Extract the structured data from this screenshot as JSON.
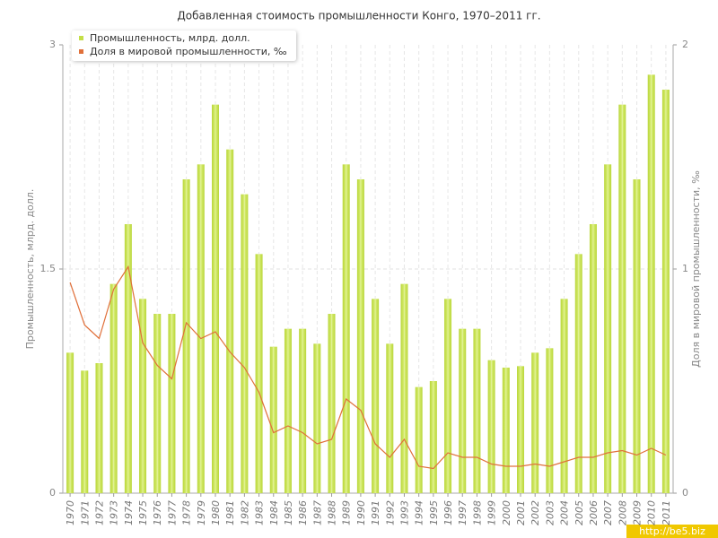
{
  "chart_data": {
    "type": "bar",
    "title": "Добавленная стоимость промышленности Конго, 1970–2011 гг.",
    "y_label": "Промышленность, млрд. долл.",
    "y2_label": "Доля в мировой промышленности, ‰",
    "watermark": "http://be5.biz",
    "categories": [
      "1970",
      "1971",
      "1972",
      "1973",
      "1974",
      "1975",
      "1976",
      "1977",
      "1978",
      "1979",
      "1980",
      "1981",
      "1982",
      "1983",
      "1984",
      "1985",
      "1986",
      "1987",
      "1988",
      "1989",
      "1990",
      "1991",
      "1992",
      "1993",
      "1994",
      "1995",
      "1996",
      "1997",
      "1998",
      "1999",
      "2000",
      "2001",
      "2002",
      "2003",
      "2004",
      "2005",
      "2006",
      "2007",
      "2008",
      "2009",
      "2010",
      "2011"
    ],
    "series": [
      {
        "name": "Промышленность, млрд. долл.",
        "type": "bar",
        "color": "#c4df48",
        "values": [
          0.94,
          0.82,
          0.87,
          1.4,
          1.8,
          1.3,
          1.2,
          1.2,
          2.1,
          2.2,
          2.6,
          2.3,
          2.0,
          1.6,
          0.98,
          1.1,
          1.1,
          1.0,
          1.2,
          2.2,
          2.1,
          1.3,
          1.0,
          1.4,
          0.71,
          0.75,
          1.3,
          1.1,
          1.1,
          0.89,
          0.84,
          0.85,
          0.94,
          0.97,
          1.3,
          1.6,
          1.8,
          2.2,
          2.6,
          2.1,
          2.8,
          2.7
        ]
      },
      {
        "name": "Доля в мировой промышленности, ‰",
        "type": "line",
        "axis": "y2",
        "color": "#e0703a",
        "values": [
          0.94,
          0.75,
          0.69,
          0.91,
          1.01,
          0.67,
          0.57,
          0.51,
          0.76,
          0.69,
          0.72,
          0.63,
          0.56,
          0.45,
          0.27,
          0.3,
          0.27,
          0.22,
          0.24,
          0.42,
          0.37,
          0.22,
          0.16,
          0.24,
          0.12,
          0.11,
          0.18,
          0.16,
          0.16,
          0.13,
          0.12,
          0.12,
          0.13,
          0.12,
          0.14,
          0.16,
          0.16,
          0.18,
          0.19,
          0.17,
          0.2,
          0.17
        ]
      }
    ],
    "ylim": [
      0,
      3
    ],
    "yticks": [
      0,
      1.5,
      3
    ],
    "y2lim": [
      0,
      2
    ],
    "y2ticks": [
      0,
      1,
      2
    ],
    "grid": true,
    "legend": "top-left"
  }
}
